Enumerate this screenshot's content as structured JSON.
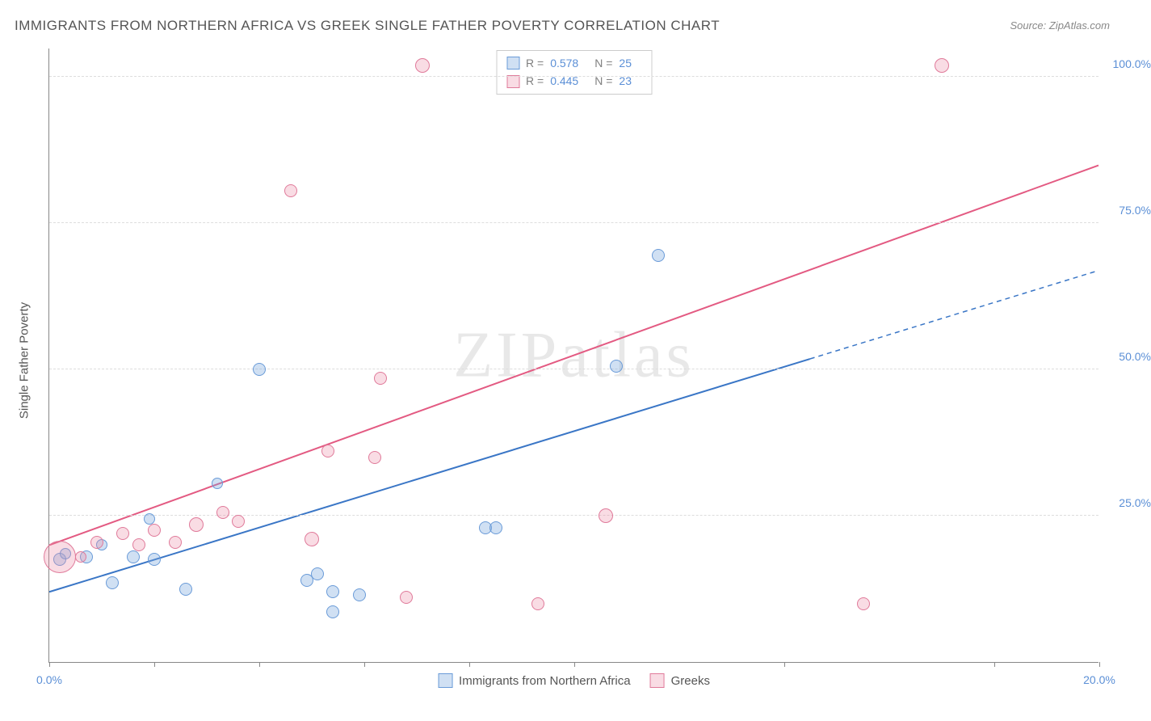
{
  "title": "IMMIGRANTS FROM NORTHERN AFRICA VS GREEK SINGLE FATHER POVERTY CORRELATION CHART",
  "source_prefix": "Source: ",
  "source": "ZipAtlas.com",
  "watermark": "ZIPatlas",
  "y_axis_label": "Single Father Poverty",
  "chart": {
    "type": "scatter",
    "xlim": [
      0,
      20
    ],
    "ylim": [
      0,
      105
    ],
    "x_tick_positions": [
      0,
      2,
      4,
      6,
      8,
      10,
      14,
      18,
      20
    ],
    "x_tick_labels": {
      "0": "0.0%",
      "20": "20.0%"
    },
    "y_grid": [
      25,
      50,
      75,
      100
    ],
    "y_tick_labels": {
      "25": "25.0%",
      "50": "50.0%",
      "75": "75.0%",
      "100": "100.0%"
    },
    "background_color": "#ffffff",
    "grid_color": "#dddddd",
    "axis_color": "#888888",
    "axis_label_color": "#555555",
    "tick_label_color": "#5b8fd6",
    "series": [
      {
        "id": "africa",
        "label": "Immigrants from Northern Africa",
        "fill": "rgba(120,165,220,0.35)",
        "stroke": "#6a9bd8",
        "line_color": "#3a76c6",
        "line_width": 2,
        "R": "0.578",
        "N": "25",
        "points": [
          {
            "x": 0.2,
            "y": 17.5,
            "r": 8
          },
          {
            "x": 0.3,
            "y": 18.5,
            "r": 7
          },
          {
            "x": 0.7,
            "y": 18.0,
            "r": 8
          },
          {
            "x": 1.0,
            "y": 20.0,
            "r": 7
          },
          {
            "x": 1.2,
            "y": 13.5,
            "r": 8
          },
          {
            "x": 1.6,
            "y": 18.0,
            "r": 8
          },
          {
            "x": 1.9,
            "y": 24.5,
            "r": 7
          },
          {
            "x": 2.0,
            "y": 17.5,
            "r": 8
          },
          {
            "x": 2.6,
            "y": 12.5,
            "r": 8
          },
          {
            "x": 3.2,
            "y": 30.5,
            "r": 7
          },
          {
            "x": 4.0,
            "y": 50.0,
            "r": 8
          },
          {
            "x": 4.9,
            "y": 14.0,
            "r": 8
          },
          {
            "x": 5.1,
            "y": 15.0,
            "r": 8
          },
          {
            "x": 5.4,
            "y": 12.0,
            "r": 8
          },
          {
            "x": 5.4,
            "y": 8.5,
            "r": 8
          },
          {
            "x": 5.9,
            "y": 11.5,
            "r": 8
          },
          {
            "x": 8.3,
            "y": 23.0,
            "r": 8
          },
          {
            "x": 8.5,
            "y": 23.0,
            "r": 8
          },
          {
            "x": 10.8,
            "y": 50.5,
            "r": 8
          },
          {
            "x": 11.6,
            "y": 69.5,
            "r": 8
          }
        ],
        "trend": {
          "x1": 0,
          "y1": 12,
          "x2": 20,
          "y2": 67,
          "solid_until_x": 14.5
        }
      },
      {
        "id": "greeks",
        "label": "Greeks",
        "fill": "rgba(235,140,165,0.30)",
        "stroke": "#e07a9a",
        "line_color": "#e35a82",
        "line_width": 2,
        "R": "0.445",
        "N": "23",
        "points": [
          {
            "x": 0.2,
            "y": 18.0,
            "r": 20
          },
          {
            "x": 0.6,
            "y": 18.0,
            "r": 7
          },
          {
            "x": 0.9,
            "y": 20.5,
            "r": 8
          },
          {
            "x": 1.4,
            "y": 22.0,
            "r": 8
          },
          {
            "x": 1.7,
            "y": 20.0,
            "r": 8
          },
          {
            "x": 2.0,
            "y": 22.5,
            "r": 8
          },
          {
            "x": 2.4,
            "y": 20.5,
            "r": 8
          },
          {
            "x": 2.8,
            "y": 23.5,
            "r": 9
          },
          {
            "x": 3.3,
            "y": 25.5,
            "r": 8
          },
          {
            "x": 3.6,
            "y": 24.0,
            "r": 8
          },
          {
            "x": 4.6,
            "y": 80.5,
            "r": 8
          },
          {
            "x": 5.0,
            "y": 21.0,
            "r": 9
          },
          {
            "x": 5.3,
            "y": 36.0,
            "r": 8
          },
          {
            "x": 6.2,
            "y": 35.0,
            "r": 8
          },
          {
            "x": 6.3,
            "y": 48.5,
            "r": 8
          },
          {
            "x": 6.8,
            "y": 11.0,
            "r": 8
          },
          {
            "x": 7.1,
            "y": 102.0,
            "r": 9
          },
          {
            "x": 9.3,
            "y": 10.0,
            "r": 8
          },
          {
            "x": 10.6,
            "y": 25.0,
            "r": 9
          },
          {
            "x": 15.5,
            "y": 10.0,
            "r": 8
          },
          {
            "x": 17.0,
            "y": 102.0,
            "r": 9
          }
        ],
        "trend": {
          "x1": 0,
          "y1": 20,
          "x2": 20,
          "y2": 85,
          "solid_until_x": 20
        }
      }
    ]
  },
  "legend_top": {
    "r_label": "R  =",
    "n_label": "N  ="
  }
}
